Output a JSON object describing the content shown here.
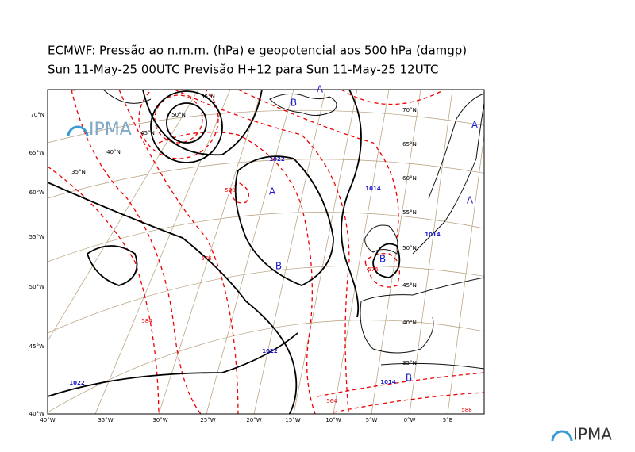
{
  "header": {
    "title": "ECMWF:  Pressão ao n.m.m. (hPa) e geopotencial aos 500 hPa (damgp)",
    "subtitle": "Sun 11-May-25 00UTC Previsão H+12 para Sun 11-May-25 12UTC"
  },
  "left_labels": [
    "70°N",
    "65°W",
    "60°W",
    "55°W",
    "50°W",
    "45°W",
    "40°W"
  ],
  "bottom_labels": [
    "40°W",
    "35°W",
    "30°W",
    "25°W",
    "20°W",
    "15°W",
    "10°W",
    "5°W",
    "0°W",
    "5°E"
  ],
  "grid_labels": [
    "55°N",
    "50°N",
    "45°N",
    "40°N",
    "35°N",
    "70°N",
    "65°N",
    "60°N",
    "55°N",
    "50°N",
    "45°N",
    "40°N",
    "35°N"
  ],
  "pressure_centers": [
    "A",
    "B",
    "B",
    "B",
    "A",
    "B",
    "A",
    "A"
  ],
  "isobar_labels": [
    "1022",
    "1014",
    "1022",
    "1022",
    "1014",
    "1014"
  ],
  "height_labels": [
    "588",
    "576",
    "584",
    "564",
    "576",
    "588"
  ],
  "logo": {
    "inset": "IPMA",
    "footer": "IPMA"
  }
}
